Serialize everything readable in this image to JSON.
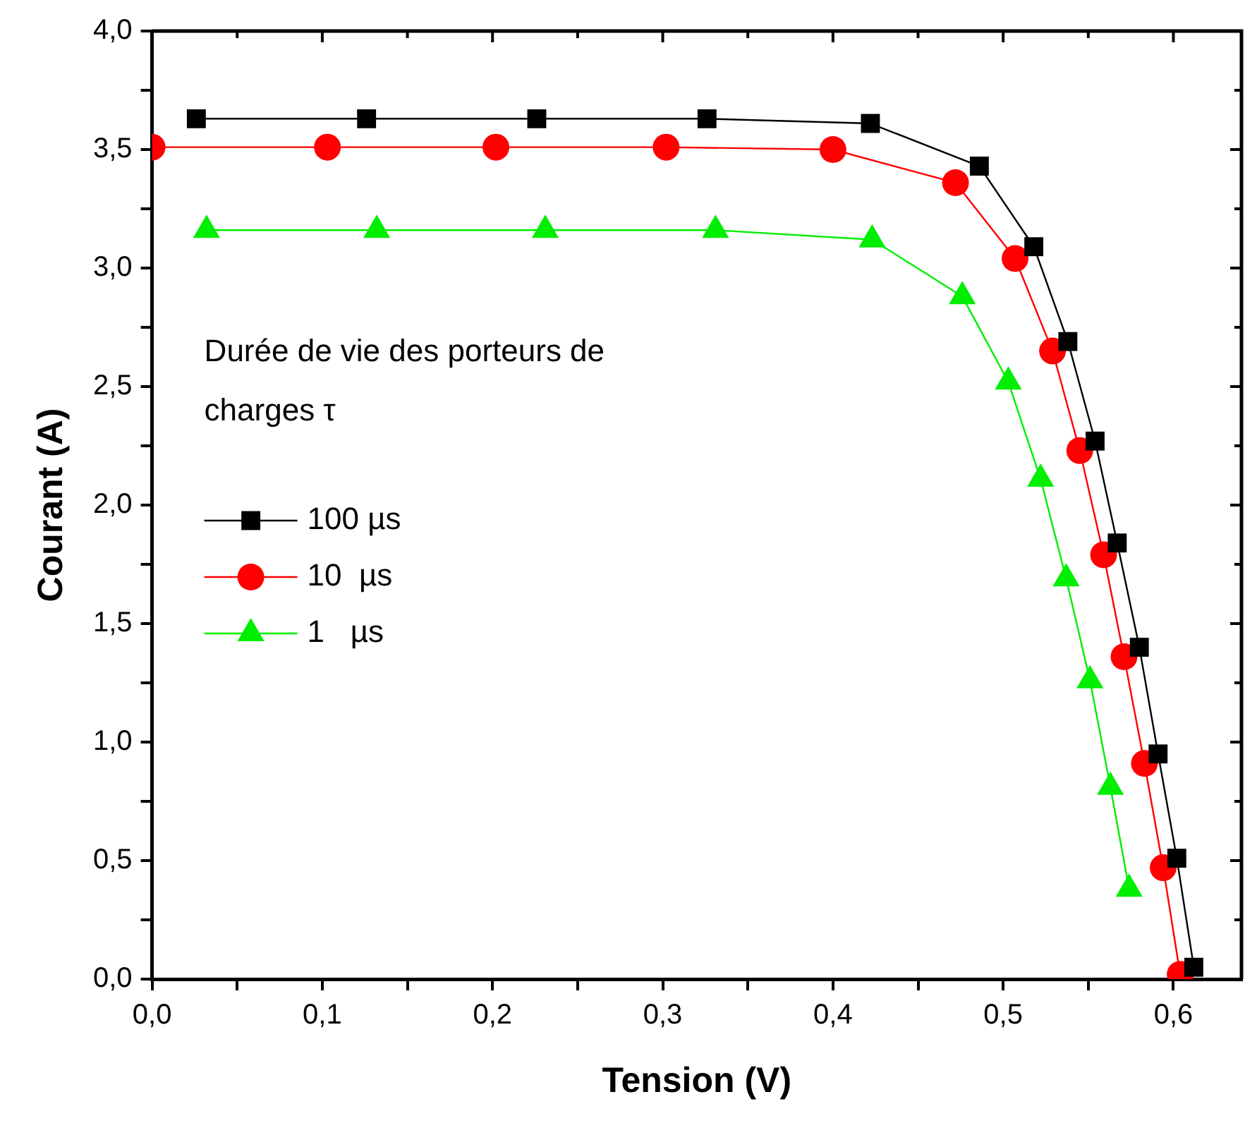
{
  "chart_data": {
    "type": "line",
    "xlabel": "Tension (V)",
    "ylabel": "Courant (A)",
    "legend_title": "Durée de vie des porteurs de charges τ",
    "legend": "left",
    "grid": false,
    "xlim": [
      0,
      0.64
    ],
    "ylim": [
      0,
      4.0
    ],
    "xticks": [
      {
        "value": 0,
        "label": "0,0"
      },
      {
        "value": 0.05,
        "label": null
      },
      {
        "value": 0.1,
        "label": "0,1"
      },
      {
        "value": 0.15,
        "label": null
      },
      {
        "value": 0.2,
        "label": "0,2"
      },
      {
        "value": 0.25,
        "label": null
      },
      {
        "value": 0.3,
        "label": "0,3"
      },
      {
        "value": 0.35,
        "label": null
      },
      {
        "value": 0.4,
        "label": "0,4"
      },
      {
        "value": 0.45,
        "label": null
      },
      {
        "value": 0.5,
        "label": "0,5"
      },
      {
        "value": 0.55,
        "label": null
      },
      {
        "value": 0.6,
        "label": "0,6"
      }
    ],
    "yticks": [
      {
        "value": 0,
        "label": "0,0"
      },
      {
        "value": 0.25,
        "label": null
      },
      {
        "value": 0.5,
        "label": "0,5"
      },
      {
        "value": 0.75,
        "label": null
      },
      {
        "value": 1.0,
        "label": "1,0"
      },
      {
        "value": 1.25,
        "label": null
      },
      {
        "value": 1.5,
        "label": "1,5"
      },
      {
        "value": 1.75,
        "label": null
      },
      {
        "value": 2.0,
        "label": "2,0"
      },
      {
        "value": 2.25,
        "label": null
      },
      {
        "value": 2.5,
        "label": "2,5"
      },
      {
        "value": 2.75,
        "label": null
      },
      {
        "value": 3.0,
        "label": "3,0"
      },
      {
        "value": 3.25,
        "label": null
      },
      {
        "value": 3.5,
        "label": "3,5"
      },
      {
        "value": 3.75,
        "label": null
      },
      {
        "value": 4.0,
        "label": "4,0"
      }
    ],
    "series": [
      {
        "name": "100 µs",
        "color": "#000000",
        "marker": "square",
        "x": [
          0.026,
          0.126,
          0.226,
          0.326,
          0.422,
          0.486,
          0.518,
          0.538,
          0.554,
          0.567,
          0.58,
          0.591,
          0.602,
          0.612
        ],
        "values": [
          3.63,
          3.63,
          3.63,
          3.63,
          3.61,
          3.43,
          3.09,
          2.69,
          2.27,
          1.84,
          1.4,
          0.95,
          0.51,
          0.05
        ]
      },
      {
        "name": "10  µs",
        "color": "#ff0000",
        "marker": "circle",
        "x": [
          0.0,
          0.103,
          0.202,
          0.302,
          0.4,
          0.472,
          0.507,
          0.529,
          0.545,
          0.559,
          0.571,
          0.583,
          0.594,
          0.604
        ],
        "values": [
          3.51,
          3.51,
          3.51,
          3.51,
          3.5,
          3.36,
          3.04,
          2.65,
          2.23,
          1.79,
          1.36,
          0.91,
          0.47,
          0.02
        ]
      },
      {
        "name": "1   µs",
        "color": "#00ee00",
        "marker": "triangle",
        "x": [
          0.032,
          0.132,
          0.231,
          0.331,
          0.423,
          0.476,
          0.503,
          0.522,
          0.537,
          0.551,
          0.563,
          0.574
        ],
        "values": [
          3.16,
          3.16,
          3.16,
          3.16,
          3.12,
          2.88,
          2.52,
          2.11,
          1.69,
          1.26,
          0.81,
          0.38
        ]
      }
    ]
  }
}
